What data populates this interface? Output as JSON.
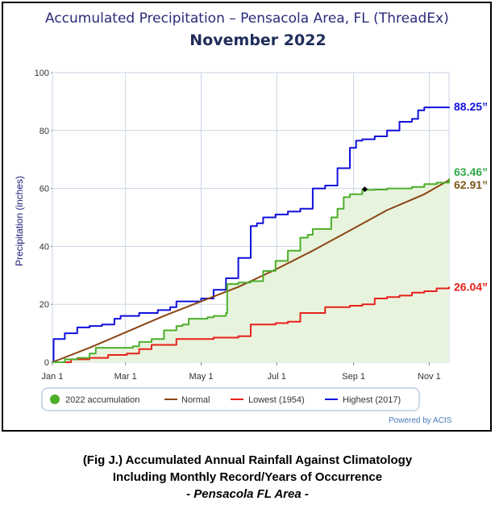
{
  "chart_data": {
    "type": "line",
    "title": "Accumulated Precipitation – Pensacola Area, FL (ThreadEx)",
    "subtitle": "November 2022",
    "ylabel": "Precipitation (inches)",
    "xlabel": "",
    "ylim": [
      0,
      100
    ],
    "yticks": [
      0,
      20,
      40,
      60,
      80,
      100
    ],
    "xlim": [
      0,
      320
    ],
    "xticks": [
      {
        "label": "Jan 1",
        "day": 0
      },
      {
        "label": "Mar 1",
        "day": 59
      },
      {
        "label": "May 1",
        "day": 120
      },
      {
        "label": "Jul 1",
        "day": 181
      },
      {
        "label": "Sep 1",
        "day": 243
      },
      {
        "label": "Nov 1",
        "day": 304
      }
    ],
    "grid": true,
    "legend_position": "bottom",
    "series": [
      {
        "name": "2022 accumulation",
        "color": "#4caf2a",
        "fill": "#e8f3de",
        "end_label": "63.46”",
        "x": [
          0,
          10,
          20,
          30,
          35,
          50,
          65,
          70,
          80,
          90,
          100,
          105,
          110,
          125,
          130,
          140,
          141,
          150,
          160,
          170,
          180,
          190,
          200,
          206,
          210,
          212,
          225,
          230,
          235,
          240,
          250,
          260,
          270,
          290,
          300,
          310,
          320
        ],
        "y": [
          0,
          1.0,
          1.5,
          3,
          5,
          5,
          5.5,
          7,
          8,
          11,
          12.5,
          13,
          15,
          15.5,
          16,
          17,
          27,
          27.5,
          28,
          31.5,
          35,
          38.5,
          43,
          44,
          46,
          46,
          50,
          53,
          57,
          58,
          59.5,
          59.6,
          60,
          60.5,
          61.5,
          62,
          63.46
        ]
      },
      {
        "name": "Normal",
        "color": "#8b4513",
        "end_label": "62.91”",
        "x": [
          0,
          30,
          60,
          90,
          120,
          150,
          180,
          210,
          240,
          270,
          300,
          320
        ],
        "y": [
          0,
          5,
          10.5,
          16,
          21,
          26,
          32,
          38.5,
          45.5,
          52.5,
          58,
          62.91
        ]
      },
      {
        "name": "Lowest (1954)",
        "color": "#e8201a",
        "end_label": "26.04”",
        "x": [
          0,
          15,
          30,
          45,
          60,
          70,
          80,
          100,
          130,
          150,
          160,
          180,
          190,
          200,
          220,
          240,
          250,
          260,
          270,
          280,
          290,
          300,
          310,
          320
        ],
        "y": [
          0,
          1,
          1.5,
          2.5,
          3,
          4.5,
          6,
          8,
          8.5,
          9,
          13,
          13.5,
          14,
          17,
          19,
          19.5,
          20,
          22,
          22.5,
          23,
          24,
          24.5,
          25.5,
          26.04
        ]
      },
      {
        "name": "Highest (2017)",
        "color": "#1010dc",
        "end_label": "88.25”",
        "x": [
          0,
          1,
          10,
          20,
          30,
          40,
          50,
          55,
          70,
          85,
          95,
          100,
          120,
          130,
          140,
          150,
          160,
          165,
          170,
          180,
          190,
          200,
          210,
          220,
          230,
          240,
          245,
          250,
          260,
          270,
          280,
          290,
          295,
          300,
          320
        ],
        "y": [
          0,
          8,
          10,
          12,
          12.5,
          13,
          15,
          16,
          17,
          18,
          19,
          21,
          22,
          25,
          29,
          36,
          47,
          48,
          50,
          51,
          52,
          53,
          60,
          61,
          67,
          74,
          76.5,
          77,
          78,
          80,
          83,
          84,
          87,
          88,
          88.25
        ]
      }
    ],
    "marker": {
      "x": 252,
      "y": 59.7
    }
  },
  "legend": {
    "items": [
      "2022 accumulation",
      "Normal",
      "Lowest (1954)",
      "Highest (2017)"
    ]
  },
  "credit": "Powered by ACIS",
  "caption": {
    "line1": "(Fig J.) Accumulated Annual Rainfall Against  Climatology",
    "line2": "Including Monthly Record/Years of Occurrence",
    "line3": "- Pensacola FL Area -"
  }
}
